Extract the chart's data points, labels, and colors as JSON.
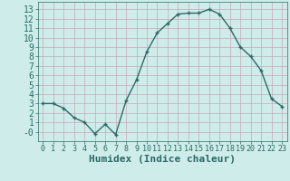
{
  "x": [
    0,
    1,
    2,
    3,
    4,
    5,
    6,
    7,
    8,
    9,
    10,
    11,
    12,
    13,
    14,
    15,
    16,
    17,
    18,
    19,
    20,
    21,
    22,
    23
  ],
  "y": [
    3.0,
    3.0,
    2.5,
    1.5,
    1.0,
    -0.2,
    0.8,
    -0.3,
    3.3,
    5.5,
    8.5,
    10.5,
    11.5,
    12.5,
    12.6,
    12.6,
    13.0,
    12.5,
    11.0,
    9.0,
    8.0,
    6.5,
    3.5,
    2.7
  ],
  "xlabel": "Humidex (Indice chaleur)",
  "bg_color": "#ceecea",
  "grid_color": "#c8a8b8",
  "line_color": "#2a6b64",
  "marker_color": "#2a6b64",
  "xlim": [
    -0.5,
    23.5
  ],
  "ylim": [
    -1.0,
    13.8
  ],
  "yticks": [
    0,
    1,
    2,
    3,
    4,
    5,
    6,
    7,
    8,
    9,
    10,
    11,
    12,
    13
  ],
  "ytick_labels": [
    "-0",
    "1",
    "2",
    "3",
    "4",
    "5",
    "6",
    "7",
    "8",
    "9",
    "10",
    "11",
    "12",
    "13"
  ],
  "xtick_labels": [
    "0",
    "1",
    "2",
    "3",
    "4",
    "5",
    "6",
    "7",
    "8",
    "9",
    "10",
    "11",
    "12",
    "13",
    "14",
    "15",
    "16",
    "17",
    "18",
    "19",
    "20",
    "21",
    "22",
    "23"
  ],
  "xlabel_fontsize": 8,
  "tick_fontsize": 7,
  "line_width": 1.0,
  "marker_size": 2.5
}
